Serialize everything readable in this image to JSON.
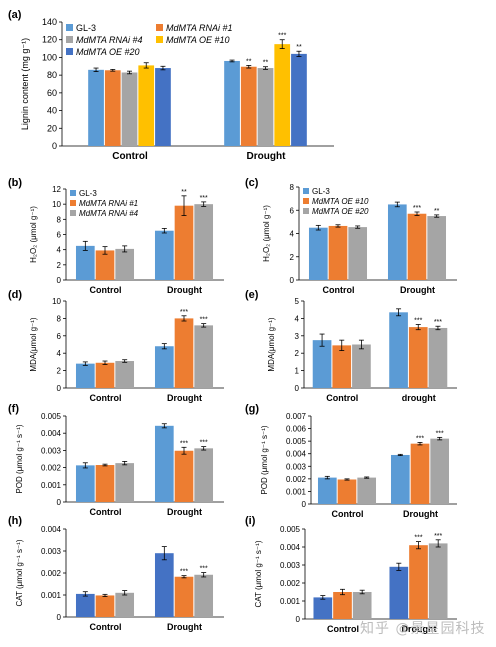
{
  "colors": {
    "GL3": "#5b9bd5",
    "RNAi1": "#ed7d31",
    "RNAi4": "#a5a5a5",
    "OE10": "#ffc000",
    "OE20": "#4472c4",
    "axis": "#000000"
  },
  "watermark": "知乎 @景星园科技",
  "chart_data": [
    {
      "id": "a",
      "panel_label": "(a)",
      "type": "bar",
      "ylabel": "Lignin content (mg g⁻¹)",
      "categories": [
        "Control",
        "Drought"
      ],
      "ylim": [
        0,
        140
      ],
      "yticks": [
        "0",
        "20",
        "40",
        "60",
        "80",
        "100",
        "120",
        "140"
      ],
      "legend_placement": "top-left",
      "series": [
        {
          "name": "GL-3",
          "color_key": "GL3",
          "values": [
            86,
            96
          ],
          "err": [
            2,
            1
          ],
          "sig": [
            "",
            ""
          ]
        },
        {
          "name": "MdMTA RNAi #1",
          "color_key": "RNAi1",
          "values": [
            85.5,
            89.5
          ],
          "err": [
            1,
            1.5
          ],
          "sig": [
            "",
            "**"
          ]
        },
        {
          "name": "MdMTA RNAi #4",
          "color_key": "RNAi4",
          "values": [
            83,
            88
          ],
          "err": [
            1.5,
            1.5
          ],
          "sig": [
            "",
            "**"
          ]
        },
        {
          "name": "MdMTA OE #10",
          "color_key": "OE10",
          "values": [
            91,
            115
          ],
          "err": [
            3,
            5
          ],
          "sig": [
            "",
            "***"
          ]
        },
        {
          "name": "MdMTA OE #20",
          "color_key": "OE20",
          "values": [
            88,
            104
          ],
          "err": [
            2,
            3
          ],
          "sig": [
            "",
            "**"
          ]
        }
      ]
    },
    {
      "id": "b",
      "panel_label": "(b)",
      "type": "bar",
      "ylabel": "H₂O₂ (μmol g⁻¹)",
      "categories": [
        "Control",
        "Drought"
      ],
      "ylim": [
        0,
        12
      ],
      "yticks": [
        "0",
        "2",
        "4",
        "6",
        "8",
        "10",
        "12"
      ],
      "legend_placement": "top-left",
      "series": [
        {
          "name": "GL-3",
          "color_key": "GL3",
          "values": [
            4.5,
            6.5
          ],
          "err": [
            0.6,
            0.3
          ],
          "sig": [
            "",
            ""
          ]
        },
        {
          "name": "MdMTA RNAi #1",
          "color_key": "RNAi1",
          "values": [
            3.9,
            9.8
          ],
          "err": [
            0.5,
            1.3
          ],
          "sig": [
            "",
            "**"
          ]
        },
        {
          "name": "MdMTA RNAi #4",
          "color_key": "RNAi4",
          "values": [
            4.1,
            10.0
          ],
          "err": [
            0.4,
            0.3
          ],
          "sig": [
            "",
            "***"
          ]
        }
      ]
    },
    {
      "id": "c",
      "panel_label": "(c)",
      "type": "bar",
      "ylabel": "H₂O₂ (μmol g⁻¹)",
      "categories": [
        "Control",
        "Drought"
      ],
      "ylim": [
        0,
        8
      ],
      "yticks": [
        "0",
        "2",
        "4",
        "6",
        "8"
      ],
      "legend_placement": "top-left",
      "series": [
        {
          "name": "GL-3",
          "color_key": "GL3",
          "values": [
            4.5,
            6.5
          ],
          "err": [
            0.2,
            0.2
          ],
          "sig": [
            "",
            ""
          ]
        },
        {
          "name": "MdMTA OE #10",
          "color_key": "RNAi1",
          "values": [
            4.65,
            5.7
          ],
          "err": [
            0.1,
            0.15
          ],
          "sig": [
            "",
            "***"
          ]
        },
        {
          "name": "MdMTA OE #20",
          "color_key": "RNAi4",
          "values": [
            4.55,
            5.5
          ],
          "err": [
            0.1,
            0.1
          ],
          "sig": [
            "",
            "**"
          ]
        }
      ]
    },
    {
      "id": "d",
      "panel_label": "(d)",
      "type": "bar",
      "ylabel": "MDA(μmol g⁻¹)",
      "categories": [
        "Control",
        "Drought"
      ],
      "ylim": [
        0,
        10
      ],
      "yticks": [
        "0",
        "2",
        "4",
        "6",
        "8",
        "10"
      ],
      "legend_placement": "none",
      "series": [
        {
          "name": "GL-3",
          "color_key": "GL3",
          "values": [
            2.8,
            4.8
          ],
          "err": [
            0.2,
            0.3
          ],
          "sig": [
            "",
            ""
          ]
        },
        {
          "name": "MdMTA RNAi #1",
          "color_key": "RNAi1",
          "values": [
            2.9,
            8.0
          ],
          "err": [
            0.2,
            0.3
          ],
          "sig": [
            "",
            "***"
          ]
        },
        {
          "name": "MdMTA RNAi #4",
          "color_key": "RNAi4",
          "values": [
            3.1,
            7.2
          ],
          "err": [
            0.15,
            0.2
          ],
          "sig": [
            "",
            "***"
          ]
        }
      ]
    },
    {
      "id": "e",
      "panel_label": "(e)",
      "type": "bar",
      "ylabel": "MDA(μmol g⁻¹)",
      "categories": [
        "Control",
        "drought"
      ],
      "ylim": [
        0,
        5
      ],
      "yticks": [
        "0",
        "1",
        "2",
        "3",
        "4",
        "5"
      ],
      "legend_placement": "none",
      "series": [
        {
          "name": "GL-3",
          "color_key": "GL3",
          "values": [
            2.75,
            4.35
          ],
          "err": [
            0.35,
            0.2
          ],
          "sig": [
            "",
            ""
          ]
        },
        {
          "name": "MdMTA OE #10",
          "color_key": "RNAi1",
          "values": [
            2.45,
            3.5
          ],
          "err": [
            0.3,
            0.15
          ],
          "sig": [
            "",
            "***"
          ]
        },
        {
          "name": "MdMTA OE #20",
          "color_key": "RNAi4",
          "values": [
            2.5,
            3.45
          ],
          "err": [
            0.25,
            0.1
          ],
          "sig": [
            "",
            "***"
          ]
        }
      ]
    },
    {
      "id": "f",
      "panel_label": "(f)",
      "type": "bar",
      "ylabel": "POD (μmol g⁻¹ s⁻¹)",
      "categories": [
        "Control",
        "Drought"
      ],
      "ylim": [
        0,
        0.005
      ],
      "yticks": [
        "0",
        "0.001",
        "0.002",
        "0.003",
        "0.004",
        "0.005"
      ],
      "legend_placement": "none",
      "series": [
        {
          "name": "GL-3",
          "color_key": "GL3",
          "values": [
            0.00213,
            0.00443
          ],
          "err": [
            0.00015,
            0.00012
          ],
          "sig": [
            "",
            ""
          ]
        },
        {
          "name": "MdMTA RNAi #1",
          "color_key": "RNAi1",
          "values": [
            0.00215,
            0.00298
          ],
          "err": [
            5e-05,
            0.0002
          ],
          "sig": [
            "",
            "***"
          ]
        },
        {
          "name": "MdMTA RNAi #4",
          "color_key": "RNAi4",
          "values": [
            0.00226,
            0.00312
          ],
          "err": [
            0.0001,
            0.0001
          ],
          "sig": [
            "",
            "***"
          ]
        }
      ]
    },
    {
      "id": "g",
      "panel_label": "(g)",
      "type": "bar",
      "ylabel": "POD (μmol g⁻¹ s⁻¹)",
      "categories": [
        "Control",
        "Drought"
      ],
      "ylim": [
        0,
        0.007
      ],
      "yticks": [
        "0",
        "0.001",
        "0.002",
        "0.003",
        "0.004",
        "0.005",
        "0.006",
        "0.007"
      ],
      "legend_placement": "none",
      "series": [
        {
          "name": "GL-3",
          "color_key": "GL3",
          "values": [
            0.0021,
            0.0039
          ],
          "err": [
            0.0001,
            5e-05
          ],
          "sig": [
            "",
            ""
          ]
        },
        {
          "name": "MdMTA OE #10",
          "color_key": "RNAi1",
          "values": [
            0.00195,
            0.0048
          ],
          "err": [
            5e-05,
            0.0001
          ],
          "sig": [
            "",
            "***"
          ]
        },
        {
          "name": "MdMTA OE #20",
          "color_key": "RNAi4",
          "values": [
            0.0021,
            0.0052
          ],
          "err": [
            5e-05,
            0.0001
          ],
          "sig": [
            "",
            "***"
          ]
        }
      ]
    },
    {
      "id": "h",
      "panel_label": "(h)",
      "type": "bar",
      "ylabel": "CAT (μmol g⁻¹ s⁻¹)",
      "categories": [
        "Control",
        "Drought"
      ],
      "ylim": [
        0,
        0.004
      ],
      "yticks": [
        "0",
        "0.001",
        "0.002",
        "0.003",
        "0.004"
      ],
      "legend_placement": "none",
      "series": [
        {
          "name": "GL-3",
          "color_key": "OE20",
          "values": [
            0.00105,
            0.0029
          ],
          "err": [
            0.0001,
            0.0003
          ],
          "sig": [
            "",
            ""
          ]
        },
        {
          "name": "MdMTA RNAi #1",
          "color_key": "RNAi1",
          "values": [
            0.00098,
            0.00183
          ],
          "err": [
            5e-05,
            5e-05
          ],
          "sig": [
            "",
            "***"
          ]
        },
        {
          "name": "MdMTA RNAi #4",
          "color_key": "RNAi4",
          "values": [
            0.0011,
            0.00192
          ],
          "err": [
            0.0001,
            0.0001
          ],
          "sig": [
            "",
            "***"
          ]
        }
      ]
    },
    {
      "id": "i",
      "panel_label": "(i)",
      "type": "bar",
      "ylabel": "CAT (μmol g⁻¹ s⁻¹)",
      "categories": [
        "Control",
        "Drought"
      ],
      "ylim": [
        0,
        0.005
      ],
      "yticks": [
        "0",
        "0.001",
        "0.002",
        "0.003",
        "0.004",
        "0.005"
      ],
      "legend_placement": "none",
      "series": [
        {
          "name": "GL-3",
          "color_key": "OE20",
          "values": [
            0.0012,
            0.0029
          ],
          "err": [
            0.0001,
            0.0002
          ],
          "sig": [
            "",
            ""
          ]
        },
        {
          "name": "MdMTA OE #10",
          "color_key": "RNAi1",
          "values": [
            0.0015,
            0.0041
          ],
          "err": [
            0.00015,
            0.0002
          ],
          "sig": [
            "",
            "***"
          ]
        },
        {
          "name": "MdMTA OE #20",
          "color_key": "RNAi4",
          "values": [
            0.0015,
            0.0042
          ],
          "err": [
            0.0001,
            0.0002
          ],
          "sig": [
            "",
            "***"
          ]
        }
      ]
    }
  ]
}
